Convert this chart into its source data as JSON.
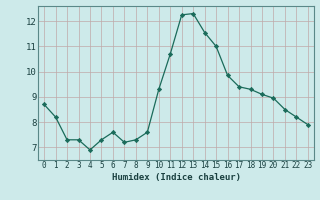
{
  "x": [
    0,
    1,
    2,
    3,
    4,
    5,
    6,
    7,
    8,
    9,
    10,
    11,
    12,
    13,
    14,
    15,
    16,
    17,
    18,
    19,
    20,
    21,
    22,
    23
  ],
  "y": [
    8.7,
    8.2,
    7.3,
    7.3,
    6.9,
    7.3,
    7.6,
    7.2,
    7.3,
    7.6,
    9.3,
    10.7,
    12.25,
    12.3,
    11.55,
    11.0,
    9.85,
    9.4,
    9.3,
    9.1,
    8.95,
    8.5,
    8.2,
    7.9
  ],
  "xlabel": "Humidex (Indice chaleur)",
  "ylim": [
    6.5,
    12.6
  ],
  "xlim": [
    -0.5,
    23.5
  ],
  "line_color": "#1a6b5a",
  "marker": "D",
  "marker_size": 2.2,
  "bg_color": "#cdeaea",
  "grid_color": "#c0a8a8",
  "tick_label_color": "#1a4040",
  "yticks": [
    7,
    8,
    9,
    10,
    11,
    12
  ],
  "xticks": [
    0,
    1,
    2,
    3,
    4,
    5,
    6,
    7,
    8,
    9,
    10,
    11,
    12,
    13,
    14,
    15,
    16,
    17,
    18,
    19,
    20,
    21,
    22,
    23
  ],
  "xtick_labels": [
    "0",
    "1",
    "2",
    "3",
    "4",
    "5",
    "6",
    "7",
    "8",
    "9",
    "10",
    "11",
    "12",
    "13",
    "14",
    "15",
    "16",
    "17",
    "18",
    "19",
    "20",
    "21",
    "22",
    "23"
  ],
  "xlabel_fontsize": 6.5,
  "tick_fontsize": 5.5,
  "ytick_fontsize": 6.5
}
